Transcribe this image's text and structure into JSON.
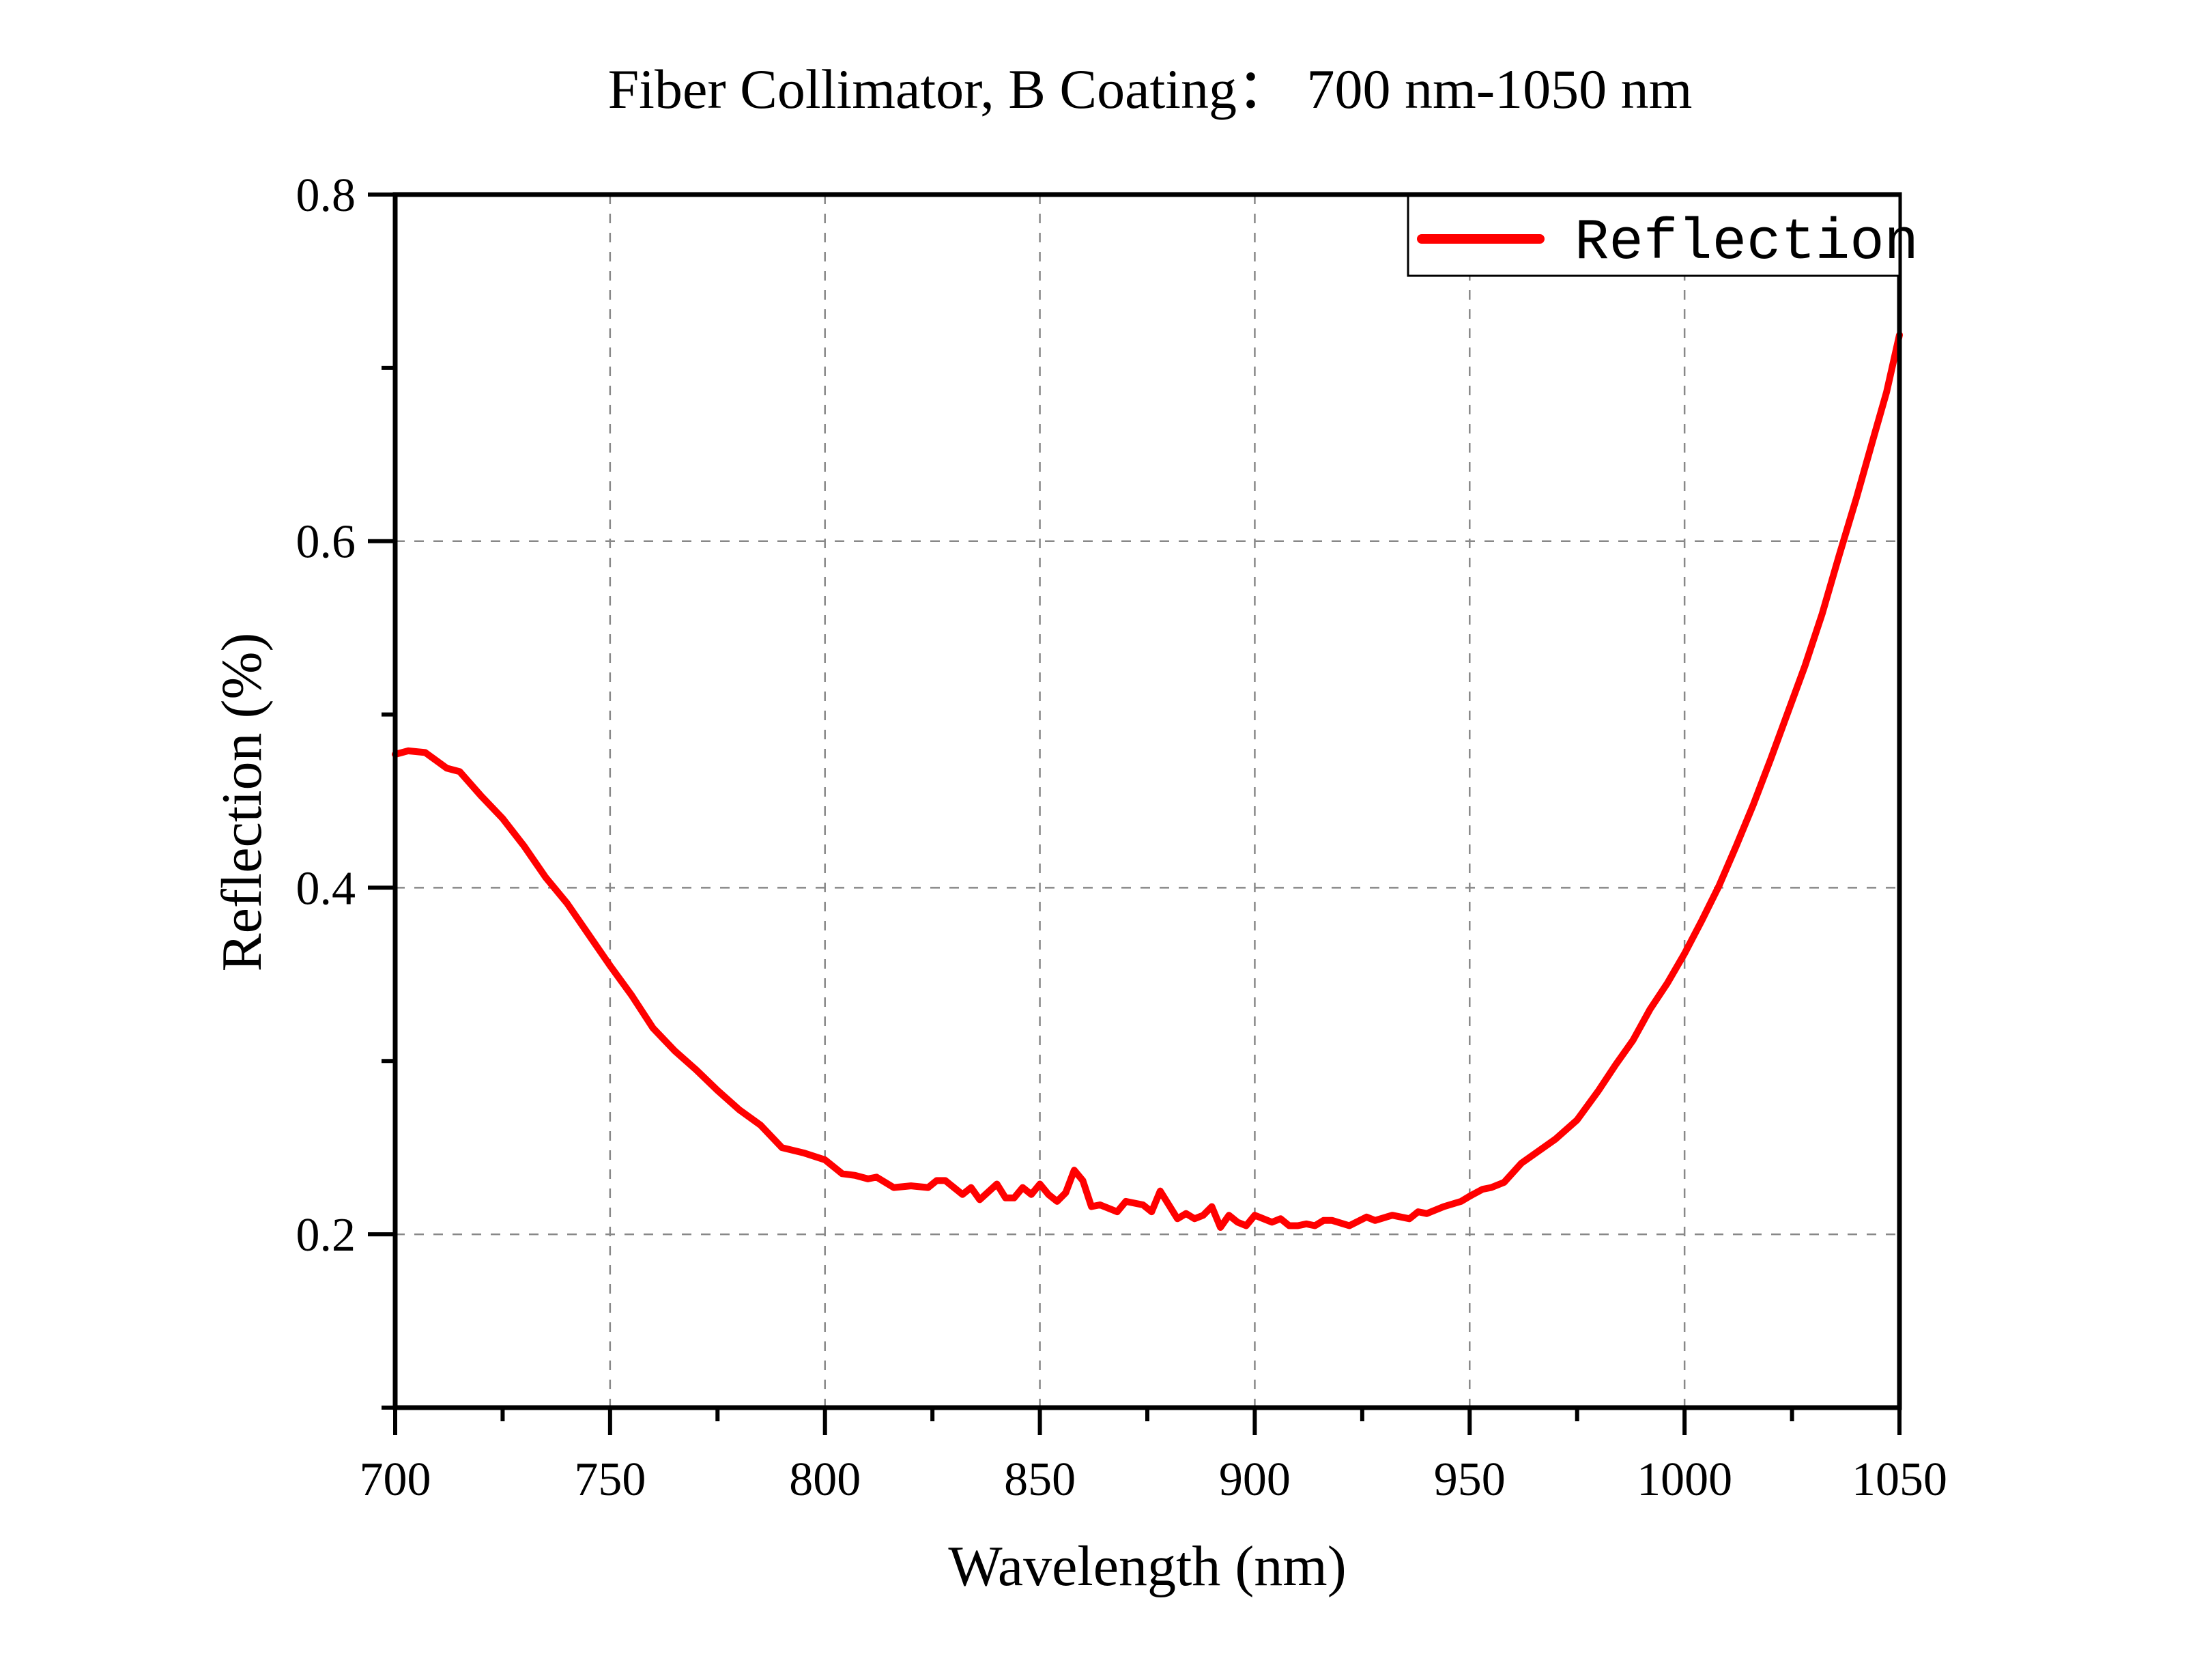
{
  "chart_data": {
    "type": "line",
    "title": "Fiber Collimator, B Coating： 700 nm-1050 nm",
    "xlabel": "Wavelength (nm)",
    "ylabel": "Reflection (%)",
    "xlim": [
      700,
      1050
    ],
    "ylim": [
      0.1,
      0.8
    ],
    "x_major_ticks": [
      700,
      750,
      800,
      850,
      900,
      950,
      1000,
      1050
    ],
    "x_minor_ticks": [
      725,
      775,
      825,
      875,
      925,
      975,
      1025
    ],
    "x_tick_labels": [
      "700",
      "750",
      "800",
      "850",
      "900",
      "950",
      "1000",
      "1050"
    ],
    "y_major_ticks": [
      0.2,
      0.4,
      0.6,
      0.8
    ],
    "y_minor_ticks": [
      0.1,
      0.3,
      0.5,
      0.7
    ],
    "y_tick_labels": [
      "0.2",
      "0.4",
      "0.6",
      "0.8"
    ],
    "grid": true,
    "legend": {
      "position": "top-right",
      "entries": [
        "Reflection"
      ]
    },
    "series": [
      {
        "name": "Reflection",
        "color": "#ff0000",
        "x": [
          700,
          703,
          707,
          712,
          715,
          720,
          725,
          730,
          735,
          740,
          745,
          750,
          755,
          760,
          765,
          770,
          775,
          780,
          785,
          790,
          795,
          800,
          804,
          807,
          810,
          812,
          816,
          820,
          824,
          826,
          828,
          832,
          834,
          836,
          840,
          842,
          844,
          846,
          848,
          850,
          852,
          854,
          856,
          858,
          860,
          862,
          864,
          868,
          870,
          874,
          876,
          878,
          880,
          882,
          884,
          886,
          888,
          890,
          892,
          894,
          896,
          898,
          900,
          904,
          906,
          908,
          910,
          912,
          914,
          916,
          918,
          922,
          926,
          928,
          932,
          936,
          938,
          940,
          944,
          948,
          950,
          953,
          955,
          958,
          962,
          966,
          970,
          975,
          980,
          984,
          988,
          992,
          996,
          1000,
          1004,
          1008,
          1012,
          1016,
          1020,
          1024,
          1028,
          1032,
          1036,
          1040,
          1044,
          1047,
          1050
        ],
        "y": [
          0.477,
          0.479,
          0.478,
          0.469,
          0.467,
          0.453,
          0.44,
          0.424,
          0.406,
          0.391,
          0.373,
          0.355,
          0.338,
          0.319,
          0.306,
          0.295,
          0.283,
          0.272,
          0.263,
          0.25,
          0.247,
          0.243,
          0.235,
          0.234,
          0.232,
          0.233,
          0.227,
          0.228,
          0.227,
          0.231,
          0.231,
          0.223,
          0.227,
          0.22,
          0.229,
          0.221,
          0.221,
          0.227,
          0.223,
          0.229,
          0.223,
          0.219,
          0.224,
          0.237,
          0.231,
          0.216,
          0.217,
          0.213,
          0.219,
          0.217,
          0.213,
          0.225,
          0.217,
          0.209,
          0.212,
          0.209,
          0.211,
          0.216,
          0.204,
          0.211,
          0.207,
          0.205,
          0.211,
          0.207,
          0.209,
          0.205,
          0.205,
          0.206,
          0.205,
          0.208,
          0.208,
          0.205,
          0.21,
          0.208,
          0.211,
          0.209,
          0.213,
          0.212,
          0.216,
          0.219,
          0.222,
          0.226,
          0.227,
          0.23,
          0.241,
          0.248,
          0.255,
          0.266,
          0.283,
          0.298,
          0.312,
          0.33,
          0.345,
          0.362,
          0.381,
          0.401,
          0.424,
          0.448,
          0.474,
          0.501,
          0.528,
          0.558,
          0.592,
          0.625,
          0.66,
          0.686,
          0.719
        ]
      }
    ]
  }
}
